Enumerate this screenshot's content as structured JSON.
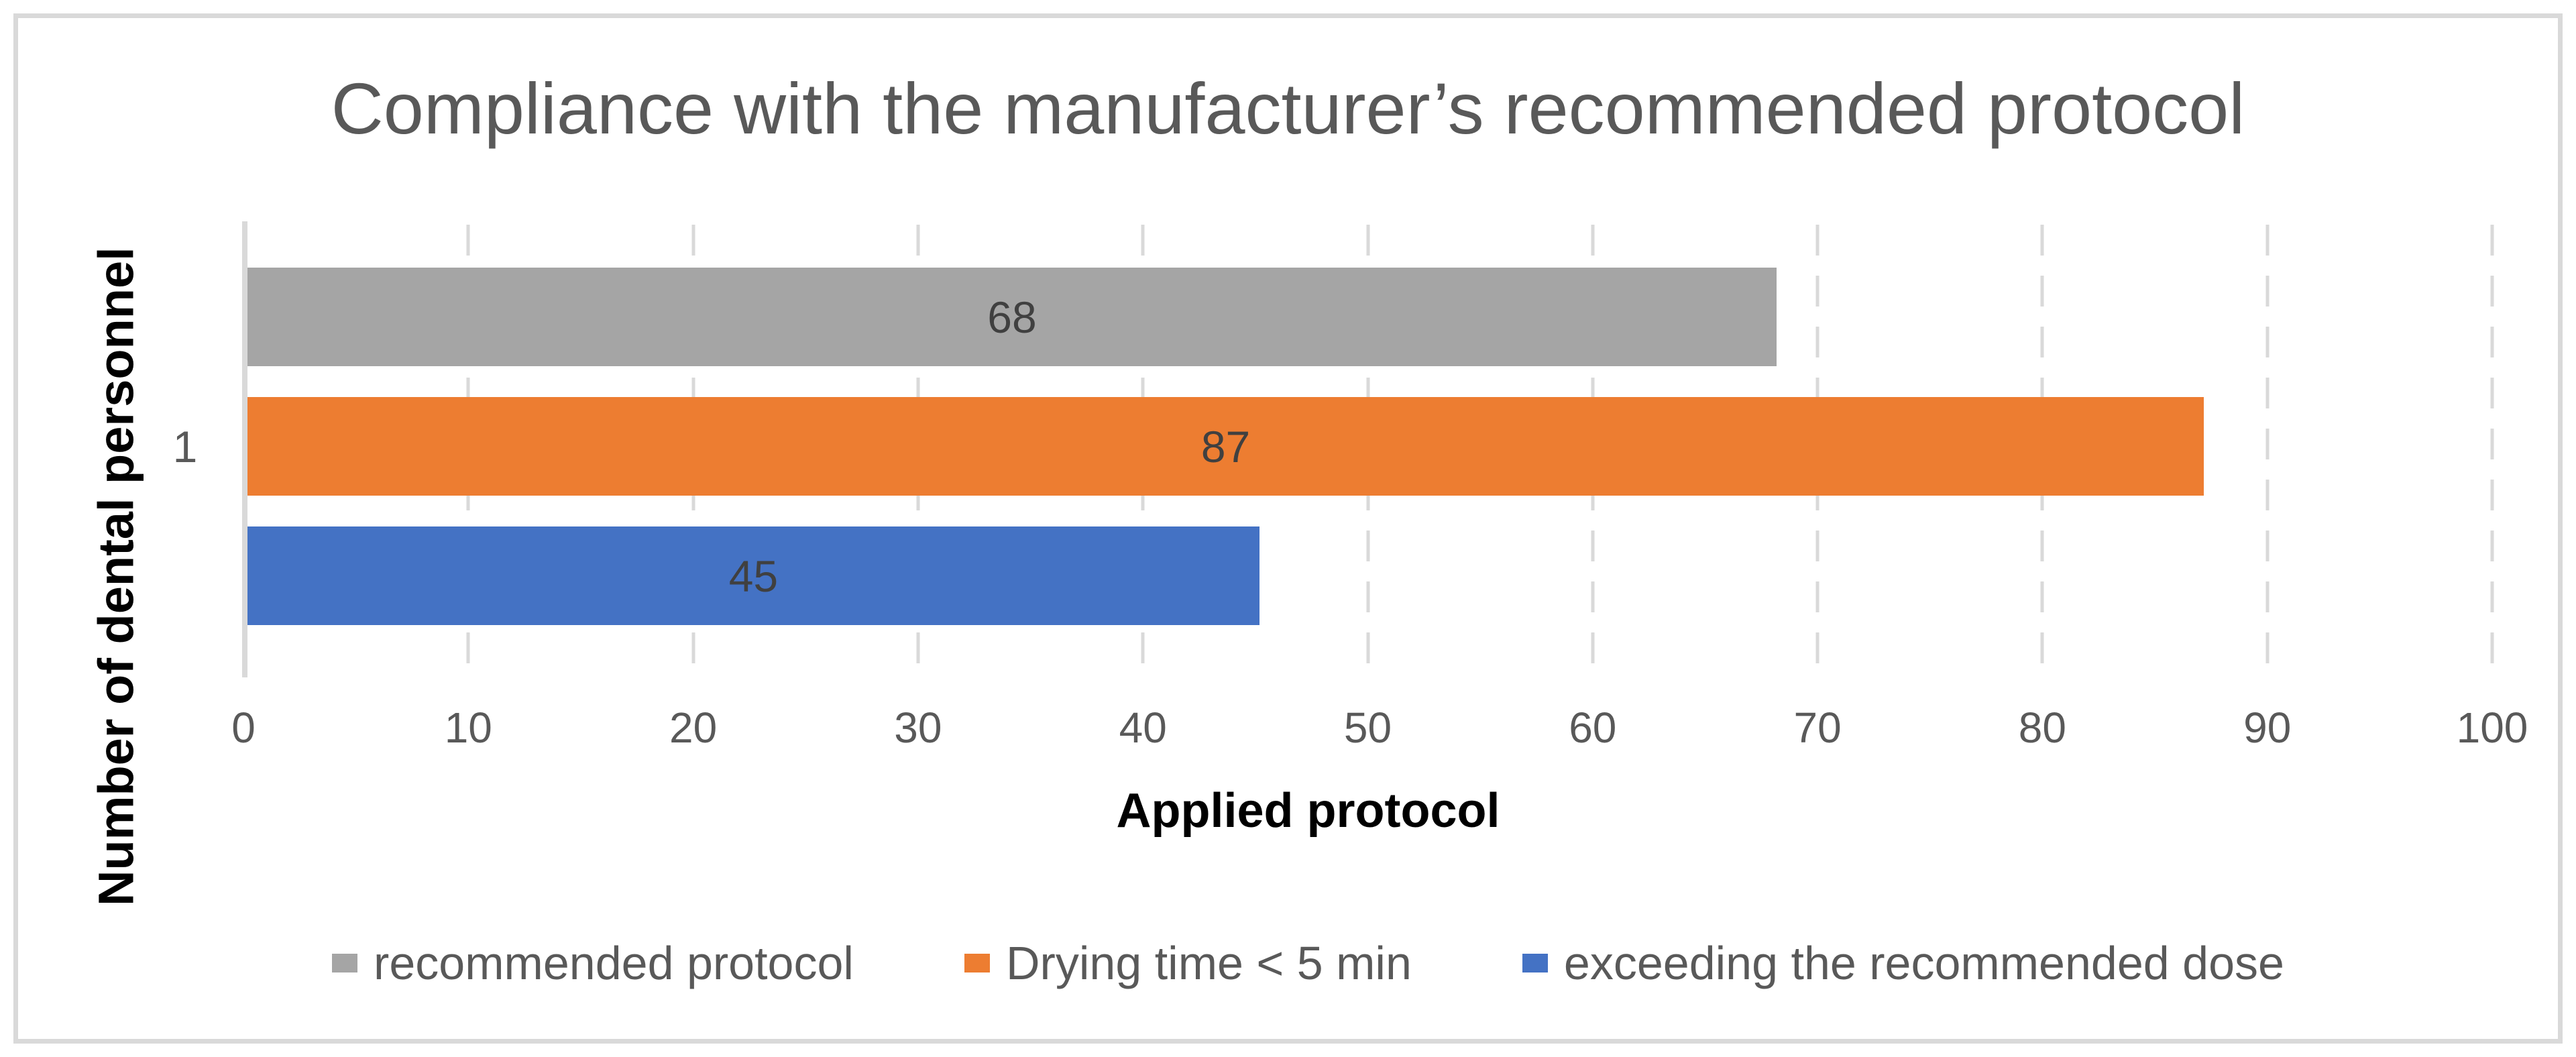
{
  "chart_data": {
    "type": "bar",
    "orientation": "horizontal",
    "title": "Compliance with the manufacturer’s recommended protocol",
    "xlabel": "Applied protocol",
    "ylabel": "Number of dental personnel",
    "categories": [
      "1"
    ],
    "series": [
      {
        "name": "recommended protocol",
        "values": [
          68
        ],
        "color": "#A5A5A5"
      },
      {
        "name": "Drying time < 5 min",
        "values": [
          87
        ],
        "color": "#ED7D31"
      },
      {
        "name": "exceeding the recommended dose",
        "values": [
          45
        ],
        "color": "#4472C4"
      }
    ],
    "xlim": [
      0,
      100
    ],
    "x_ticks": [
      0,
      10,
      20,
      30,
      40,
      50,
      60,
      70,
      80,
      90,
      100
    ],
    "grid": "vertical dashed lines at every 10 units",
    "legend_position": "bottom",
    "data_labels": "centered inside bars",
    "theme": {
      "title_color": "#595959",
      "tick_label_color": "#595959",
      "data_label_color": "#404040",
      "axis_title_color": "#000000",
      "grid_color": "#D9D9D9",
      "axis_line_color": "#D9D9D9",
      "border_color": "#D9D9D9",
      "background": "#FFFFFF"
    }
  }
}
